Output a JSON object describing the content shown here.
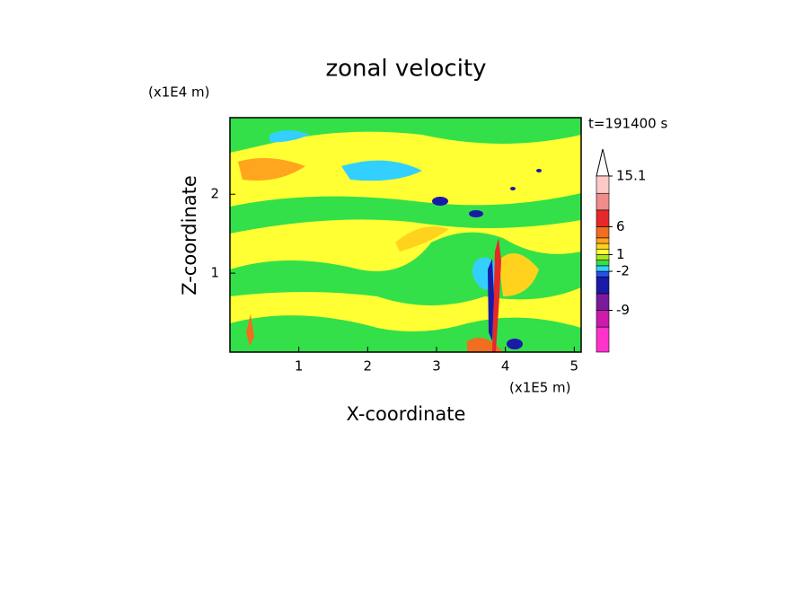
{
  "chart_data": {
    "type": "contour",
    "title": "zonal velocity",
    "xlabel": "X-coordinate",
    "ylabel": "Z-coordinate",
    "x_unit": "(x1E5 m)",
    "y_unit": "(x1E4 m)",
    "annotation": "t=191400 s",
    "xlim": [
      0,
      5.1
    ],
    "xticks": [
      1,
      2,
      3,
      4,
      5
    ],
    "ylim": [
      0,
      2.97
    ],
    "yticks": [
      1,
      2
    ],
    "colorbar": {
      "levels": [
        -16.5,
        -12,
        -9,
        -6,
        -3,
        -2,
        -1,
        0,
        1,
        2,
        3,
        4,
        6,
        9,
        12,
        15.1
      ],
      "colors": [
        "#ff33cc",
        "#cc1aaa",
        "#7a1a9c",
        "#1a1aa8",
        "#2850e6",
        "#33d0ff",
        "#33e04a",
        "#a8e61e",
        "#ffff33",
        "#ffd21e",
        "#ffa51e",
        "#f06e1e",
        "#e62828",
        "#f08c8c",
        "#ffc8c8"
      ],
      "ticks": [
        -9,
        -2,
        1,
        6,
        15.1
      ]
    }
  }
}
